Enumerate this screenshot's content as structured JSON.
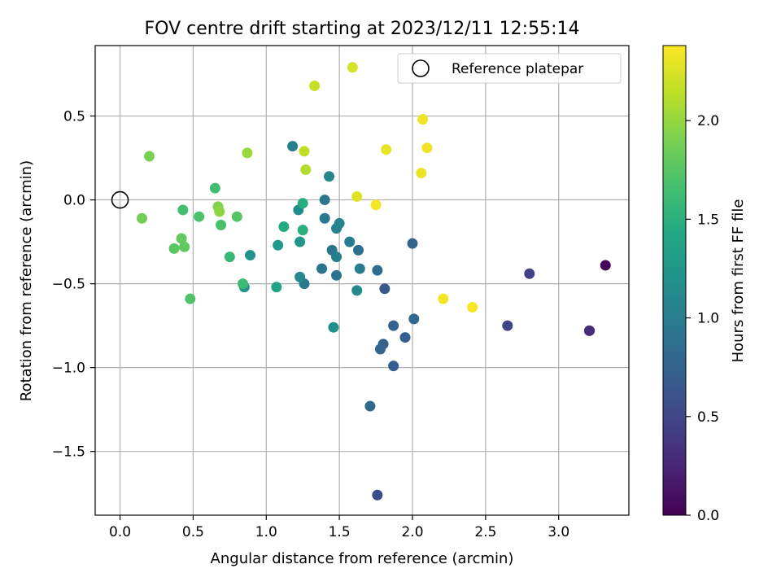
{
  "chart_data": {
    "type": "scatter",
    "title": "FOV centre drift starting at 2023/12/11 12:55:14",
    "xlabel": "Angular distance from reference (arcmin)",
    "ylabel": "Rotation from reference (arcmin)",
    "xlim": [
      -0.17,
      3.48
    ],
    "ylim": [
      -1.88,
      0.92
    ],
    "xticks": [
      0.0,
      0.5,
      1.0,
      1.5,
      2.0,
      2.5,
      3.0
    ],
    "xtick_labels": [
      "0.0",
      "0.5",
      "1.0",
      "1.5",
      "2.0",
      "2.5",
      "3.0"
    ],
    "yticks": [
      -1.5,
      -1.0,
      -0.5,
      0.0,
      0.5
    ],
    "ytick_labels": [
      "−1.5",
      "−1.0",
      "−0.5",
      "0.0",
      "0.5"
    ],
    "grid": true,
    "legend": {
      "position": "top-right",
      "entries": [
        "Reference platepar"
      ]
    },
    "reference_point": {
      "x": 0.0,
      "y": 0.0,
      "label": "Reference platepar"
    },
    "colorbar": {
      "label": "Hours from first FF file",
      "colormap": "viridis",
      "range": [
        0.0,
        2.38
      ],
      "ticks": [
        0.0,
        0.5,
        1.0,
        1.5,
        2.0
      ],
      "tick_labels": [
        "0.0",
        "0.5",
        "1.0",
        "1.5",
        "2.0"
      ]
    },
    "points": [
      {
        "x": 3.32,
        "y": -0.39,
        "c": 0.02
      },
      {
        "x": 3.21,
        "y": -0.78,
        "c": 0.25
      },
      {
        "x": 3.21,
        "y": -0.78,
        "c": 0.28
      },
      {
        "x": 2.8,
        "y": -0.44,
        "c": 0.45
      },
      {
        "x": 2.65,
        "y": -0.75,
        "c": 0.48
      },
      {
        "x": 1.76,
        "y": -1.76,
        "c": 0.55
      },
      {
        "x": 1.81,
        "y": -0.53,
        "c": 0.66
      },
      {
        "x": 1.87,
        "y": -0.99,
        "c": 0.7
      },
      {
        "x": 1.95,
        "y": -0.82,
        "c": 0.72
      },
      {
        "x": 1.8,
        "y": -0.86,
        "c": 0.74
      },
      {
        "x": 1.78,
        "y": -0.89,
        "c": 0.76
      },
      {
        "x": 1.87,
        "y": -0.75,
        "c": 0.75
      },
      {
        "x": 2.0,
        "y": -0.26,
        "c": 0.78
      },
      {
        "x": 2.01,
        "y": -0.71,
        "c": 0.8
      },
      {
        "x": 1.71,
        "y": -1.23,
        "c": 0.82
      },
      {
        "x": 1.76,
        "y": -0.42,
        "c": 0.85
      },
      {
        "x": 1.63,
        "y": -0.3,
        "c": 0.88
      },
      {
        "x": 1.38,
        "y": -0.41,
        "c": 0.9
      },
      {
        "x": 1.48,
        "y": -0.45,
        "c": 0.91
      },
      {
        "x": 1.45,
        "y": -0.3,
        "c": 0.93
      },
      {
        "x": 1.4,
        "y": 0.0,
        "c": 0.94
      },
      {
        "x": 1.4,
        "y": -0.11,
        "c": 0.96
      },
      {
        "x": 1.26,
        "y": -0.5,
        "c": 0.97
      },
      {
        "x": 1.57,
        "y": -0.25,
        "c": 0.98
      },
      {
        "x": 1.64,
        "y": -0.41,
        "c": 1.0
      },
      {
        "x": 1.48,
        "y": -0.34,
        "c": 1.02
      },
      {
        "x": 1.18,
        "y": 0.32,
        "c": 1.04
      },
      {
        "x": 1.48,
        "y": -0.17,
        "c": 1.05
      },
      {
        "x": 1.43,
        "y": 0.14,
        "c": 1.07
      },
      {
        "x": 1.5,
        "y": -0.14,
        "c": 1.08
      },
      {
        "x": 1.23,
        "y": -0.46,
        "c": 1.1
      },
      {
        "x": 1.62,
        "y": -0.54,
        "c": 1.12
      },
      {
        "x": 1.22,
        "y": -0.06,
        "c": 1.14
      },
      {
        "x": 1.46,
        "y": -0.76,
        "c": 1.16
      },
      {
        "x": 0.89,
        "y": -0.33,
        "c": 1.2
      },
      {
        "x": 0.85,
        "y": -0.52,
        "c": 1.22
      },
      {
        "x": 1.23,
        "y": -0.25,
        "c": 1.25
      },
      {
        "x": 1.08,
        "y": -0.27,
        "c": 1.28
      },
      {
        "x": 1.07,
        "y": -0.52,
        "c": 1.38
      },
      {
        "x": 1.12,
        "y": -0.16,
        "c": 1.45
      },
      {
        "x": 1.25,
        "y": -0.02,
        "c": 1.48
      },
      {
        "x": 1.25,
        "y": -0.18,
        "c": 1.5
      },
      {
        "x": 0.75,
        "y": -0.34,
        "c": 1.58
      },
      {
        "x": 0.84,
        "y": -0.5,
        "c": 1.62
      },
      {
        "x": 0.65,
        "y": 0.07,
        "c": 1.65
      },
      {
        "x": 0.43,
        "y": -0.06,
        "c": 1.66
      },
      {
        "x": 0.69,
        "y": -0.15,
        "c": 1.68
      },
      {
        "x": 0.54,
        "y": -0.1,
        "c": 1.7
      },
      {
        "x": 0.48,
        "y": -0.59,
        "c": 1.72
      },
      {
        "x": 0.8,
        "y": -0.1,
        "c": 1.74
      },
      {
        "x": 0.37,
        "y": -0.29,
        "c": 1.76
      },
      {
        "x": 0.44,
        "y": -0.28,
        "c": 1.78
      },
      {
        "x": 0.42,
        "y": -0.23,
        "c": 1.8
      },
      {
        "x": 0.15,
        "y": -0.11,
        "c": 1.86
      },
      {
        "x": 0.2,
        "y": 0.26,
        "c": 1.9
      },
      {
        "x": 0.67,
        "y": -0.04,
        "c": 1.92
      },
      {
        "x": 0.68,
        "y": -0.07,
        "c": 1.98
      },
      {
        "x": 0.87,
        "y": 0.28,
        "c": 2.02
      },
      {
        "x": 1.27,
        "y": 0.18,
        "c": 2.1
      },
      {
        "x": 1.26,
        "y": 0.29,
        "c": 2.14
      },
      {
        "x": 1.33,
        "y": 0.68,
        "c": 2.18
      },
      {
        "x": 1.59,
        "y": 0.79,
        "c": 2.22
      },
      {
        "x": 1.62,
        "y": 0.02,
        "c": 2.27
      },
      {
        "x": 1.82,
        "y": 0.3,
        "c": 2.3
      },
      {
        "x": 2.06,
        "y": 0.16,
        "c": 2.31
      },
      {
        "x": 2.07,
        "y": 0.48,
        "c": 2.32
      },
      {
        "x": 2.1,
        "y": 0.31,
        "c": 2.33
      },
      {
        "x": 1.75,
        "y": -0.03,
        "c": 2.34
      },
      {
        "x": 2.21,
        "y": -0.59,
        "c": 2.35
      },
      {
        "x": 2.41,
        "y": -0.64,
        "c": 2.36
      }
    ]
  }
}
